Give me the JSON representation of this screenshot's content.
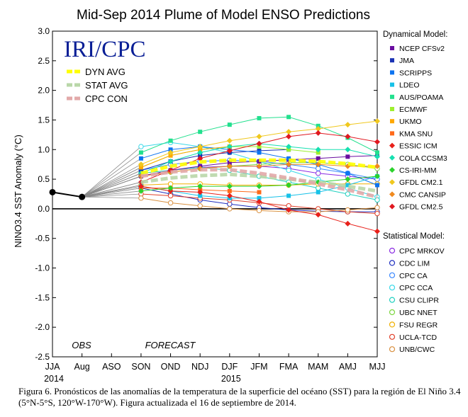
{
  "chart_data": {
    "type": "line",
    "title": "Mid-Sep 2014 Plume of Model ENSO Predictions",
    "ylabel": "NINO3.4 SST Anomaly (°C)",
    "ylim": [
      -2.5,
      3.0
    ],
    "yticks": [
      "3.0",
      "2.5",
      "2.0",
      "1.5",
      "1.0",
      "0.5",
      "0.0",
      "-0.5",
      "-1.0",
      "-1.5",
      "-2.0",
      "-2.5"
    ],
    "categories": [
      "JJA",
      "Aug",
      "ASO",
      "SON",
      "OND",
      "NDJ",
      "DJF",
      "JFM",
      "FMA",
      "MAM",
      "AMJ",
      "MJJ"
    ],
    "year_labels": [
      {
        "label": "2014",
        "at": 0
      },
      {
        "label": "2015",
        "at": 6
      }
    ],
    "obs_label": "OBS",
    "forecast_label": "FORECAST",
    "logo": "IRI/CPC",
    "observed": [
      0.28,
      0.2
    ],
    "forecast_start_index": 3,
    "averages": [
      {
        "name": "DYN AVG",
        "color": "#ffff00",
        "values": [
          0.6,
          0.72,
          0.79,
          0.82,
          0.82,
          0.82,
          0.8,
          0.76,
          0.7
        ]
      },
      {
        "name": "STAT AVG",
        "color": "#b9d7a8",
        "values": [
          0.45,
          0.52,
          0.56,
          0.58,
          0.55,
          0.5,
          0.45,
          0.38,
          0.3
        ]
      },
      {
        "name": "CPC CON",
        "color": "#e2a9a9",
        "values": [
          0.55,
          0.62,
          0.66,
          0.66,
          0.6,
          0.52,
          0.42,
          0.32,
          0.2
        ]
      }
    ],
    "dynamical_header": "Dynamical Model:",
    "statistical_header": "Statistical Model:",
    "dynamical": [
      {
        "name": "NCEP CFSv2",
        "color": "#6a0ea0",
        "values": [
          0.55,
          0.65,
          0.72,
          0.78,
          0.8,
          0.83,
          0.85,
          0.88,
          0.9
        ]
      },
      {
        "name": "JMA",
        "color": "#1a32b4",
        "values": [
          0.65,
          0.8,
          0.9,
          0.95,
          0.98,
          1.0,
          null,
          null,
          null
        ]
      },
      {
        "name": "SCRIPPS",
        "color": "#0d74f0",
        "values": [
          0.85,
          1.0,
          1.05,
          1.0,
          0.95,
          0.85,
          0.75,
          0.6,
          0.4
        ]
      },
      {
        "name": "LDEO",
        "color": "#17c1e8",
        "values": [
          0.38,
          0.3,
          0.22,
          0.18,
          0.18,
          0.22,
          0.28,
          0.4,
          0.55
        ]
      },
      {
        "name": "AUS/POAMA",
        "color": "#22e08e",
        "values": [
          0.95,
          1.15,
          1.3,
          1.42,
          1.53,
          1.55,
          1.4,
          1.2,
          0.95
        ]
      },
      {
        "name": "ECMWF",
        "color": "#9eef2e",
        "values": [
          0.7,
          0.9,
          1.0,
          1.05,
          1.05,
          1.0,
          0.95,
          null,
          null
        ]
      },
      {
        "name": "UKMO",
        "color": "#ffa800",
        "values": [
          0.7,
          0.9,
          1.0,
          1.05,
          null,
          null,
          null,
          null,
          null
        ]
      },
      {
        "name": "KMA SNU",
        "color": "#ff6a1a",
        "values": [
          0.35,
          0.35,
          0.32,
          0.3,
          0.28,
          null,
          null,
          null,
          null
        ]
      },
      {
        "name": "ESSIC ICM",
        "color": "#e8201a",
        "values": [
          0.38,
          0.3,
          0.28,
          0.22,
          0.12,
          -0.02,
          -0.1,
          -0.25,
          -0.38
        ]
      },
      {
        "name": "COLA CCSM3",
        "color": "#16e0b0",
        "values": [
          0.6,
          0.8,
          0.95,
          1.05,
          1.1,
          1.05,
          1.0,
          1.0,
          0.88
        ]
      },
      {
        "name": "CS-IRI-MM",
        "color": "#2bd22b",
        "values": [
          0.3,
          0.35,
          0.38,
          0.38,
          0.38,
          0.4,
          0.45,
          0.5,
          0.55
        ]
      },
      {
        "name": "GFDL CM2.1",
        "color": "#f0c81e",
        "values": [
          0.75,
          0.95,
          1.05,
          1.15,
          1.22,
          1.3,
          1.35,
          1.42,
          1.48
        ]
      },
      {
        "name": "CMC CANSIP",
        "color": "#f08a1e",
        "values": [
          0.55,
          0.62,
          0.68,
          0.72,
          0.72,
          0.75,
          0.75,
          0.72,
          0.72
        ]
      },
      {
        "name": "GFDL CM2.5",
        "color": "#e01820",
        "values": [
          0.45,
          0.65,
          0.85,
          0.98,
          1.1,
          1.22,
          1.28,
          1.22,
          1.13
        ]
      }
    ],
    "statistical": [
      {
        "name": "CPC MRKOV",
        "color": "#8a2be2",
        "values": [
          0.55,
          0.65,
          0.7,
          0.72,
          0.72,
          0.68,
          0.6,
          0.55,
          0.5
        ]
      },
      {
        "name": "CDC LIM",
        "color": "#2030c0",
        "values": [
          0.35,
          0.25,
          0.15,
          0.08,
          0.02,
          -0.02,
          -0.04,
          -0.05,
          -0.05
        ]
      },
      {
        "name": "CPC CA",
        "color": "#3a88ff",
        "values": [
          0.65,
          0.75,
          0.8,
          0.82,
          0.8,
          0.75,
          0.68,
          0.6,
          0.5
        ]
      },
      {
        "name": "CPC CCA",
        "color": "#38d8e8",
        "values": [
          1.05,
          1.12,
          1.05,
          0.95,
          0.8,
          0.65,
          0.5,
          0.35,
          0.2
        ]
      },
      {
        "name": "CSU CLIPR",
        "color": "#20d0c0",
        "values": [
          0.6,
          0.65,
          0.7,
          0.65,
          0.55,
          0.45,
          0.35,
          0.25,
          0.15
        ]
      },
      {
        "name": "UBC NNET",
        "color": "#7cd640",
        "values": [
          0.55,
          0.62,
          0.68,
          0.72,
          0.75,
          0.78,
          0.78,
          0.75,
          0.68
        ]
      },
      {
        "name": "FSU REGR",
        "color": "#f0b000",
        "values": [
          0.4,
          0.42,
          0.42,
          0.4,
          0.4,
          0.4,
          0.42,
          0.42,
          0.42
        ]
      },
      {
        "name": "UCLA-TCD",
        "color": "#e0402a",
        "values": [
          0.25,
          0.22,
          0.18,
          0.15,
          0.1,
          0.05,
          0.0,
          -0.05,
          -0.08
        ]
      },
      {
        "name": "UNB/CWC",
        "color": "#d89040",
        "values": [
          0.18,
          0.1,
          0.05,
          0.0,
          -0.03,
          -0.05,
          -0.05,
          -0.02,
          0.02
        ]
      }
    ]
  },
  "caption": "Figura 6. Pronósticos de las anomalías de la temperatura de la superficie del océano (SST) para la región de El Niño 3.4 (5°N-5°S, 120°W-170°W). Figura actualizada el 16 de septiembre de 2014."
}
